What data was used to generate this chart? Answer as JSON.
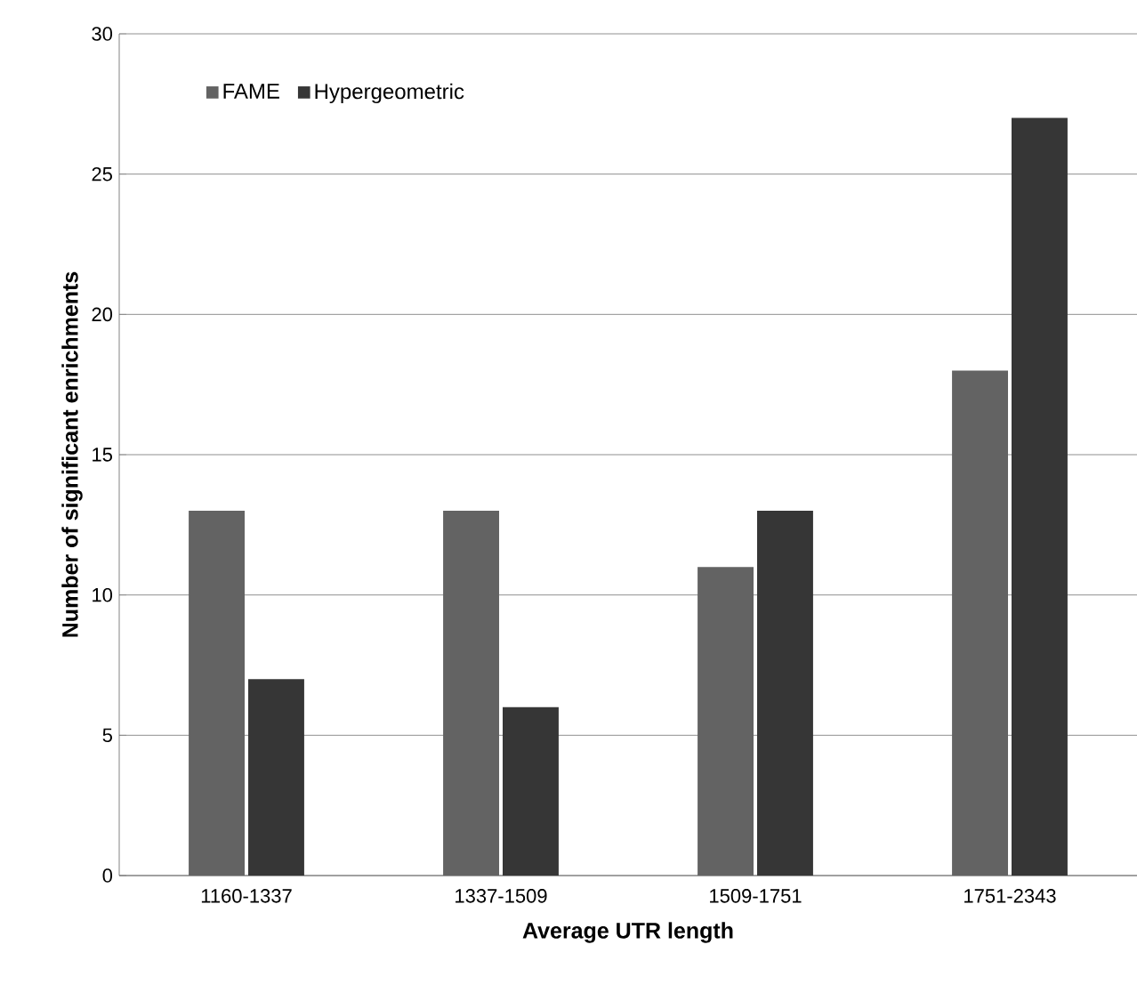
{
  "chart_data": {
    "type": "bar",
    "xlabel": "Average UTR length",
    "ylabel": "Number of significant enrichments",
    "categories": [
      "1160-1337",
      "1337-1509",
      "1509-1751",
      "1751-2343"
    ],
    "series": [
      {
        "name": "FAME",
        "color": "#636363",
        "values": [
          13,
          13,
          11,
          18
        ]
      },
      {
        "name": "Hypergeometric",
        "color": "#363636",
        "values": [
          7,
          6,
          13,
          27
        ]
      }
    ],
    "ylim": [
      0,
      30
    ],
    "yticks": [
      0,
      5,
      10,
      15,
      20,
      25,
      30
    ],
    "grid": "y",
    "legend": "top left"
  }
}
